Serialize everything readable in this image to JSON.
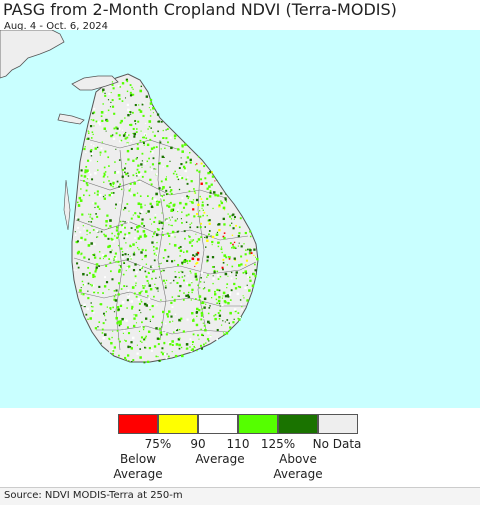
{
  "header": {
    "title": "PASG from 2-Month Cropland NDVI (Terra-MODIS)",
    "date_range": "Aug. 4 - Oct. 6, 2024"
  },
  "map": {
    "region": "Sri Lanka",
    "ocean_color": "#c9ffff",
    "land_color": "#eeeeee",
    "boundary_color": "#555555"
  },
  "legend": {
    "classes": [
      {
        "color": "#ff0000",
        "meaning": "Below Average"
      },
      {
        "color": "#ffff00",
        "meaning": "Below Average"
      },
      {
        "color": "#ffffff",
        "meaning": "Average"
      },
      {
        "color": "#55ff00",
        "meaning": "Above Average"
      },
      {
        "color": "#1a7300",
        "meaning": "Above Average"
      },
      {
        "color": "#eeeeee",
        "meaning": "No Data"
      }
    ],
    "tick_labels": [
      "75%",
      "90",
      "110",
      "125%"
    ],
    "no_data_label": "No Data",
    "below_label": "Below\nAverage",
    "average_label": "Average",
    "above_label": "Above\nAverage"
  },
  "footer": {
    "source": "Source: NDVI MODIS-Terra at 250-m"
  }
}
